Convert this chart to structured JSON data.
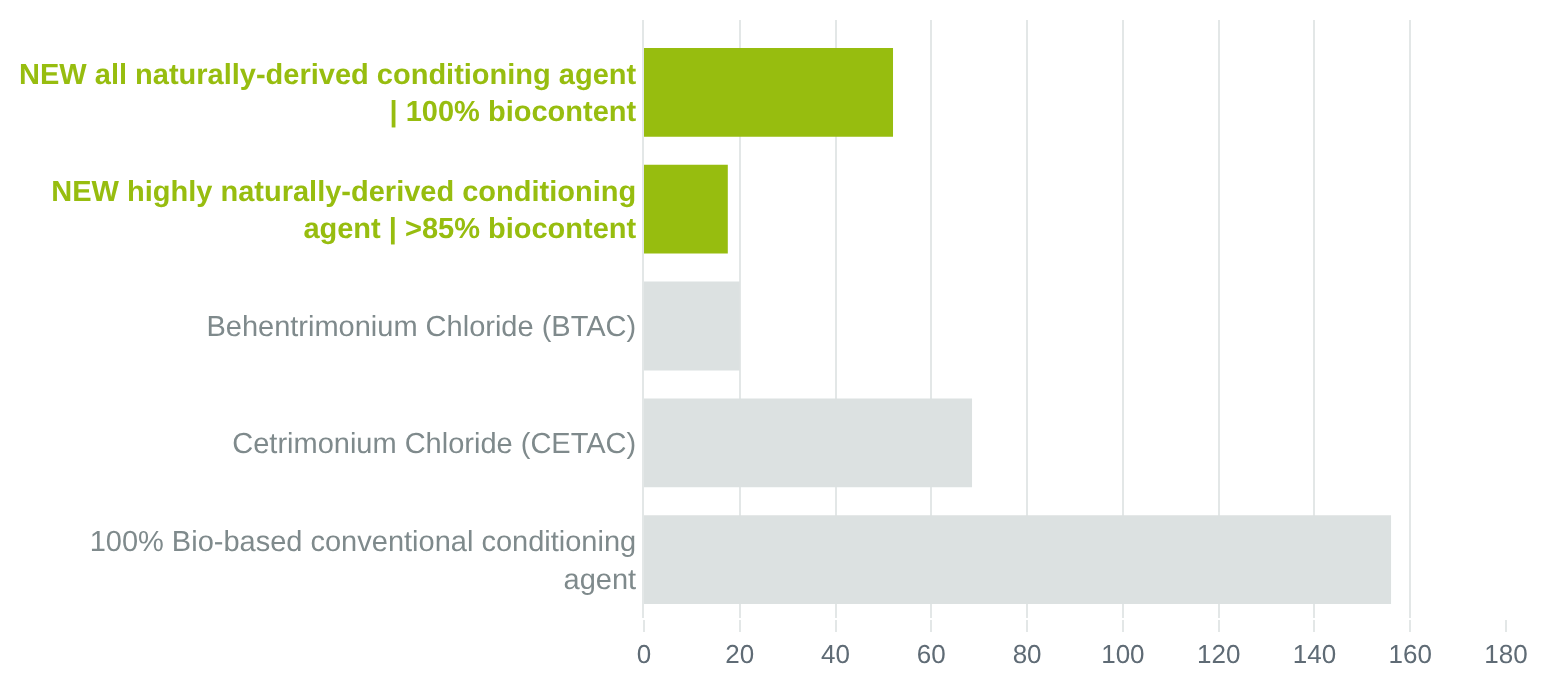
{
  "chart_data": {
    "type": "bar",
    "orientation": "horizontal",
    "categories": [
      "NEW all naturally-derived conditioning agent | 100% biocontent",
      "NEW highly naturally-derived conditioning agent | >85% biocontent",
      "Behentrimonium Chloride (BTAC)",
      "Cetrimonium Chloride (CETAC)",
      "100% Bio-based conventional conditioning agent"
    ],
    "values": [
      52,
      17.5,
      20,
      68.5,
      156
    ],
    "colors": [
      "#97bd0f",
      "#97bd0f",
      "#dce1e1",
      "#dce1e1",
      "#dce1e1"
    ],
    "xlim": [
      0,
      180
    ],
    "xticks": [
      0,
      20,
      40,
      60,
      80,
      100,
      120,
      140,
      160,
      180
    ],
    "grid": "x"
  }
}
